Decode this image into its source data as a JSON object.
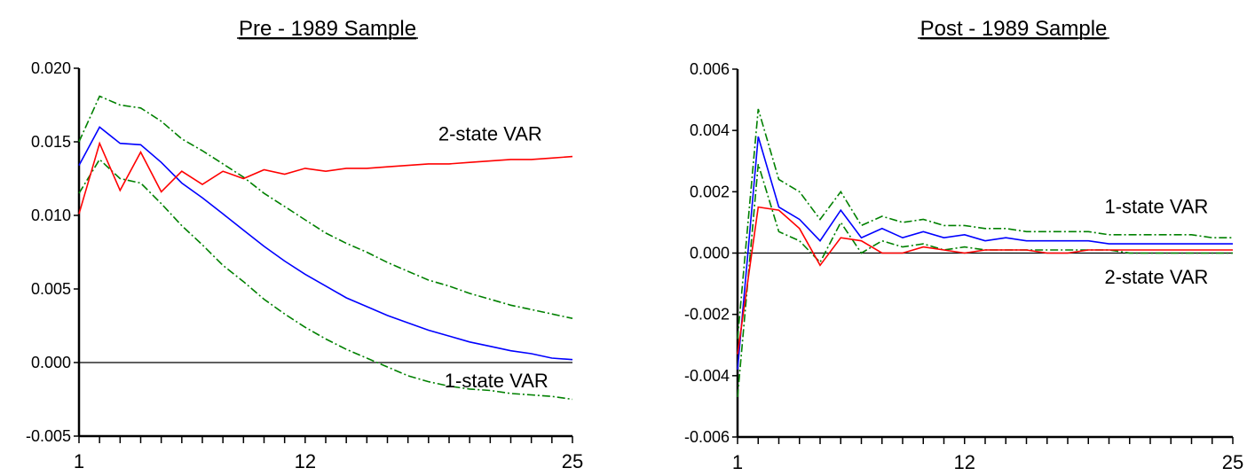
{
  "chart_data": [
    {
      "type": "line",
      "title": "Pre - 1989 Sample",
      "xlabel": "",
      "ylabel": "",
      "xlim": [
        1,
        25
      ],
      "ylim": [
        -0.005,
        0.02
      ],
      "x_ticks": [
        1,
        12,
        25
      ],
      "y_ticks": [
        -0.005,
        0.0,
        0.005,
        0.01,
        0.015,
        0.02
      ],
      "y_tick_labels": [
        "-0.005",
        "0.000",
        "0.005",
        "0.010",
        "0.015",
        "0.020"
      ],
      "grid": false,
      "zero_line": true,
      "x": [
        1,
        2,
        3,
        4,
        5,
        6,
        7,
        8,
        9,
        10,
        11,
        12,
        13,
        14,
        15,
        16,
        17,
        18,
        19,
        20,
        21,
        22,
        23,
        24,
        25
      ],
      "series": [
        {
          "role": "upper-band",
          "color": "#008000",
          "dashed": true,
          "values": [
            0.015,
            0.0181,
            0.0175,
            0.0173,
            0.0164,
            0.0152,
            0.0144,
            0.0135,
            0.0126,
            0.0115,
            0.0106,
            0.0097,
            0.0088,
            0.0081,
            0.0075,
            0.0068,
            0.0062,
            0.0056,
            0.0052,
            0.0047,
            0.0043,
            0.0039,
            0.0036,
            0.0033,
            0.003
          ]
        },
        {
          "role": "lower-band",
          "color": "#008000",
          "dashed": true,
          "values": [
            0.0115,
            0.0138,
            0.0125,
            0.0122,
            0.0108,
            0.0093,
            0.008,
            0.0066,
            0.0055,
            0.0043,
            0.0033,
            0.0024,
            0.0016,
            0.0009,
            0.0003,
            -0.0003,
            -0.0009,
            -0.0013,
            -0.0016,
            -0.0018,
            -0.0019,
            -0.0021,
            -0.0022,
            -0.0023,
            -0.0025
          ]
        },
        {
          "role": "1-state",
          "color": "#0000ff",
          "dashed": false,
          "values": [
            0.0134,
            0.016,
            0.0149,
            0.0148,
            0.0136,
            0.0122,
            0.0112,
            0.0101,
            0.009,
            0.0079,
            0.0069,
            0.006,
            0.0052,
            0.0044,
            0.0038,
            0.0032,
            0.0027,
            0.0022,
            0.0018,
            0.0014,
            0.0011,
            0.0008,
            0.0006,
            0.0003,
            0.0002
          ]
        },
        {
          "role": "2-state",
          "color": "#ff0000",
          "dashed": false,
          "values": [
            0.0101,
            0.0149,
            0.0117,
            0.0143,
            0.0116,
            0.013,
            0.0121,
            0.013,
            0.0125,
            0.0131,
            0.0128,
            0.0132,
            0.013,
            0.0132,
            0.0132,
            0.0133,
            0.0134,
            0.0135,
            0.0135,
            0.0136,
            0.0137,
            0.0138,
            0.0138,
            0.0139,
            0.014
          ]
        }
      ],
      "annotations": [
        {
          "text": "2-state VAR",
          "x": 21,
          "y": 0.0151
        },
        {
          "text": "1-state VAR",
          "x": 21.3,
          "y": -0.0017
        }
      ]
    },
    {
      "type": "line",
      "title": "Post - 1989 Sample",
      "xlabel": "",
      "ylabel": "",
      "xlim": [
        1,
        25
      ],
      "ylim": [
        -0.006,
        0.006
      ],
      "x_ticks": [
        1,
        12,
        25
      ],
      "y_ticks": [
        -0.006,
        -0.004,
        -0.002,
        0.0,
        0.002,
        0.004,
        0.006
      ],
      "y_tick_labels": [
        "-0.006",
        "-0.004",
        "-0.002",
        "0.000",
        "0.002",
        "0.004",
        "0.006"
      ],
      "grid": false,
      "zero_line": true,
      "x": [
        1,
        2,
        3,
        4,
        5,
        6,
        7,
        8,
        9,
        10,
        11,
        12,
        13,
        14,
        15,
        16,
        17,
        18,
        19,
        20,
        21,
        22,
        23,
        24,
        25
      ],
      "series": [
        {
          "role": "upper-band",
          "color": "#008000",
          "dashed": true,
          "values": [
            -0.0028,
            0.0047,
            0.0024,
            0.002,
            0.0011,
            0.002,
            0.0009,
            0.0012,
            0.001,
            0.0011,
            0.0009,
            0.0009,
            0.0008,
            0.0008,
            0.0007,
            0.0007,
            0.0007,
            0.0007,
            0.0006,
            0.0006,
            0.0006,
            0.0006,
            0.0006,
            0.0005,
            0.0005
          ]
        },
        {
          "role": "lower-band",
          "color": "#008000",
          "dashed": true,
          "values": [
            -0.0047,
            0.0029,
            0.0007,
            0.0004,
            -0.0003,
            0.001,
            0.0,
            0.0004,
            0.0002,
            0.0003,
            0.0001,
            0.0002,
            0.0001,
            0.0001,
            0.0001,
            0.0001,
            0.0001,
            0.0001,
            0.0001,
            0.0,
            0.0,
            0.0,
            0.0,
            0.0,
            0.0
          ]
        },
        {
          "role": "1-state",
          "color": "#0000ff",
          "dashed": false,
          "values": [
            -0.0038,
            0.0038,
            0.0015,
            0.0011,
            0.0004,
            0.0014,
            0.0005,
            0.0008,
            0.0005,
            0.0007,
            0.0005,
            0.0006,
            0.0004,
            0.0005,
            0.0004,
            0.0004,
            0.0004,
            0.0004,
            0.0003,
            0.0003,
            0.0003,
            0.0003,
            0.0003,
            0.0003,
            0.0003
          ]
        },
        {
          "role": "2-state",
          "color": "#ff0000",
          "dashed": false,
          "values": [
            -0.0033,
            0.0015,
            0.0014,
            0.0008,
            -0.0004,
            0.0005,
            0.0004,
            0.0,
            0.0,
            0.0002,
            0.0001,
            0.0,
            0.0001,
            0.0001,
            0.0001,
            0.0,
            0.0,
            0.0001,
            0.0001,
            0.0001,
            0.0001,
            0.0001,
            0.0001,
            0.0001,
            0.0001
          ]
        }
      ],
      "annotations": [
        {
          "text": "1-state VAR",
          "x": 21.3,
          "y": 0.0013
        },
        {
          "text": "2-state VAR",
          "x": 21.3,
          "y": -0.001
        }
      ]
    }
  ]
}
